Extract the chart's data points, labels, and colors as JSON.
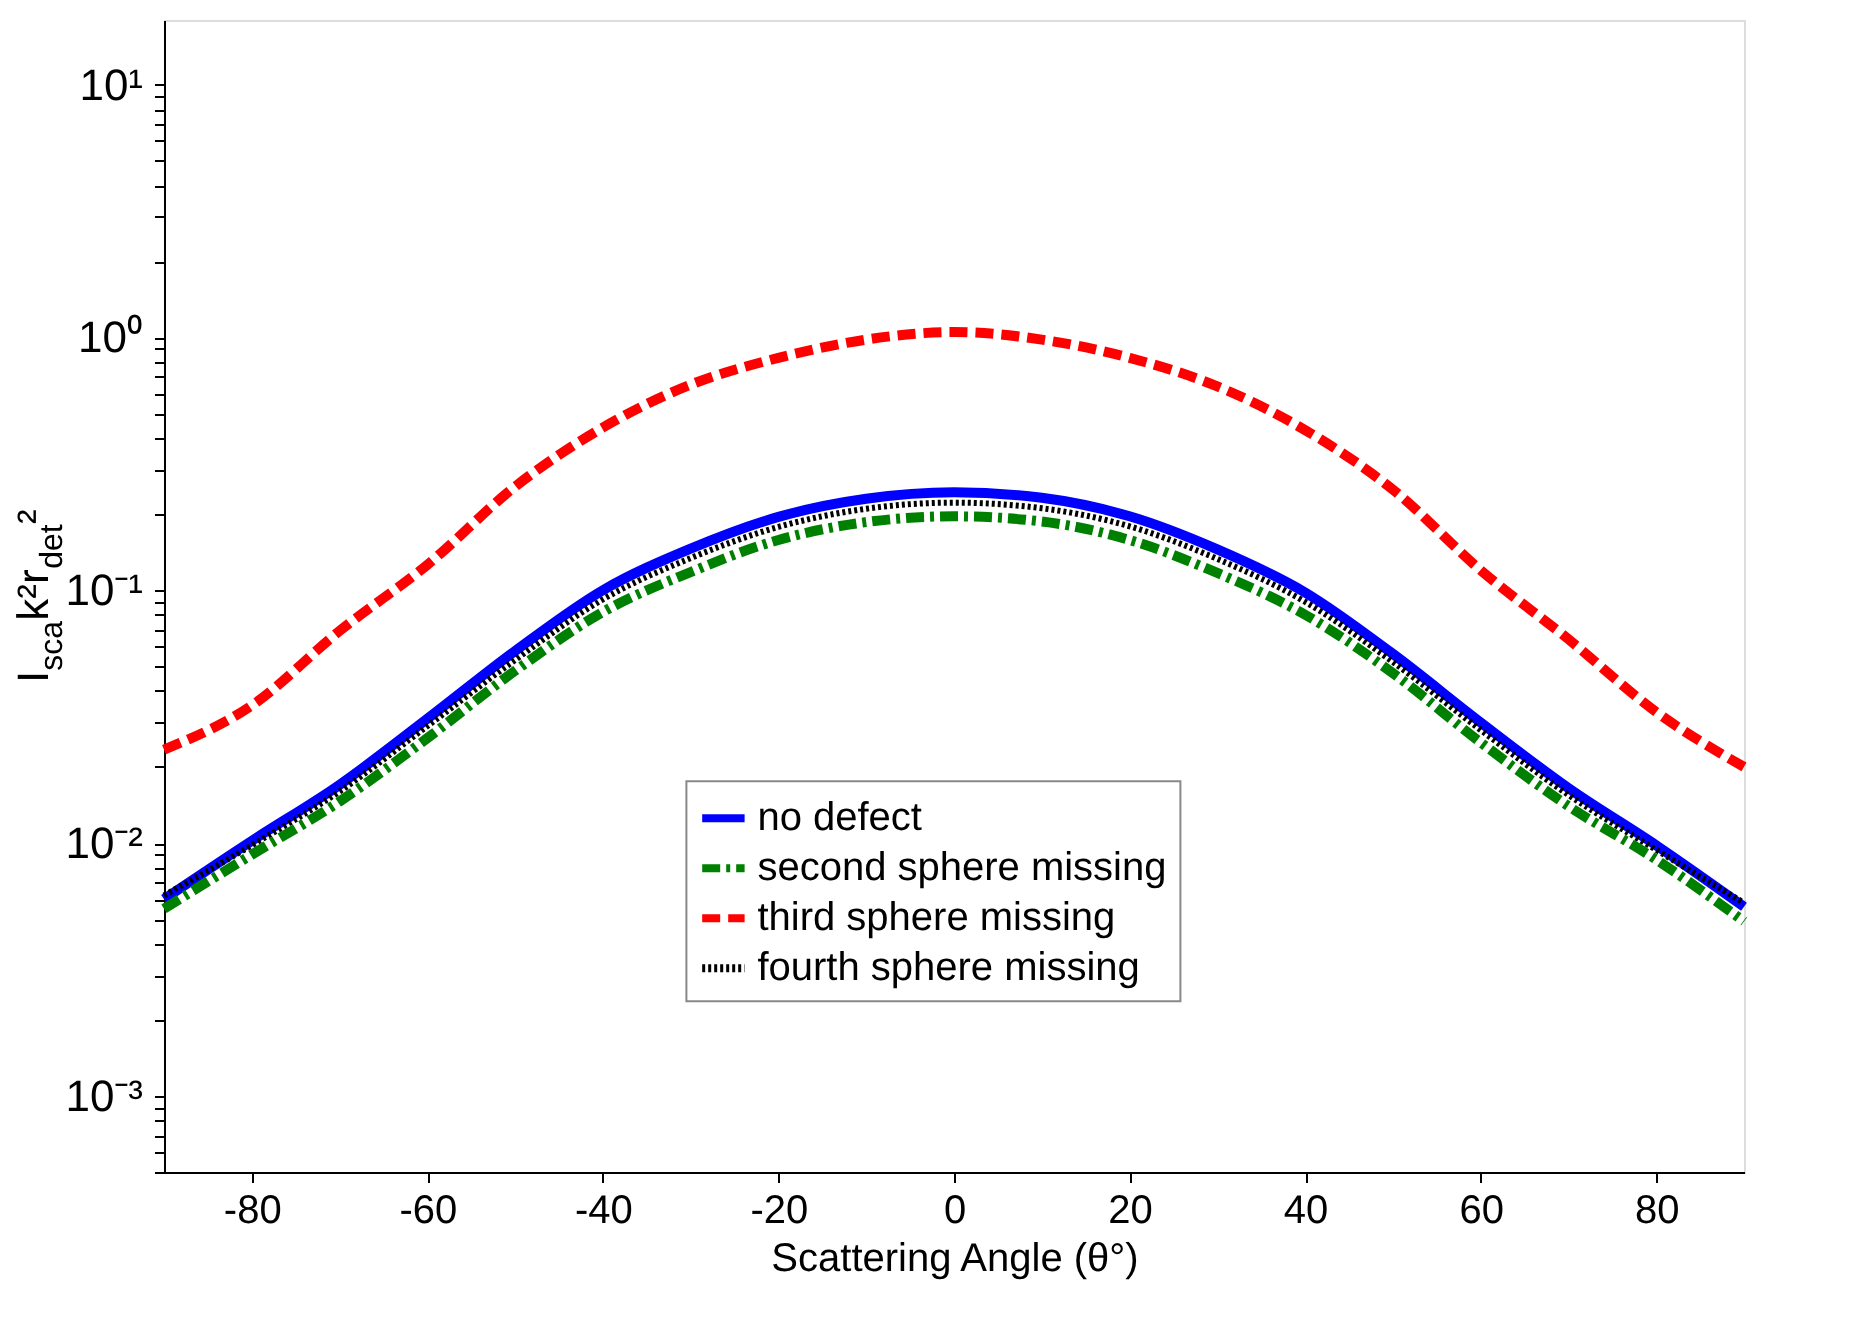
{
  "chart_data": {
    "type": "line",
    "xlabel": "Scattering Angle (θ°)",
    "ylabel": "I$_{sca}$k²r$_{det}$²",
    "x": [
      -90,
      -80,
      -70,
      -60,
      -50,
      -40,
      -30,
      -20,
      -10,
      0,
      10,
      20,
      30,
      40,
      50,
      60,
      70,
      80,
      90
    ],
    "series": [
      {
        "name": "no defect",
        "color": "#0000ff",
        "line_style": "solid",
        "values": [
          0.006,
          0.0102,
          0.017,
          0.031,
          0.0575,
          0.1,
          0.146,
          0.195,
          0.23,
          0.244,
          0.232,
          0.196,
          0.145,
          0.098,
          0.056,
          0.03,
          0.0165,
          0.0098,
          0.0056
        ]
      },
      {
        "name": "second sphere missing",
        "color": "#008000",
        "line_style": "dashdot",
        "values": [
          0.0055,
          0.009,
          0.0146,
          0.026,
          0.048,
          0.082,
          0.118,
          0.158,
          0.186,
          0.196,
          0.187,
          0.158,
          0.117,
          0.08,
          0.047,
          0.025,
          0.014,
          0.0086,
          0.0049
        ]
      },
      {
        "name": "third sphere missing",
        "color": "#ff0000",
        "line_style": "dashed",
        "values": [
          0.0234,
          0.035,
          0.069,
          0.126,
          0.257,
          0.44,
          0.65,
          0.83,
          0.98,
          1.05,
          0.98,
          0.83,
          0.64,
          0.43,
          0.25,
          0.12,
          0.064,
          0.033,
          0.02
        ]
      },
      {
        "name": "fourth sphere missing",
        "color": "#000000",
        "line_style": "dotted",
        "values": [
          0.0062,
          0.0098,
          0.016,
          0.029,
          0.053,
          0.092,
          0.134,
          0.178,
          0.21,
          0.222,
          0.211,
          0.179,
          0.133,
          0.09,
          0.052,
          0.028,
          0.0155,
          0.0094,
          0.0058
        ]
      }
    ],
    "log": "y",
    "xlim": [
      -90,
      90
    ],
    "xticks": [
      -80,
      -60,
      -40,
      -20,
      0,
      20,
      40,
      60,
      80
    ],
    "ylim": [
      0.0005,
      18
    ],
    "yticks": [
      {
        "value": 0.0005,
        "label": null
      },
      {
        "value": 0.0006,
        "label": null
      },
      {
        "value": 0.0007,
        "label": null
      },
      {
        "value": 0.0008,
        "label": null
      },
      {
        "value": 0.0009,
        "label": null
      },
      {
        "value": 0.001,
        "label": "10⁻³"
      },
      {
        "value": 0.002,
        "label": null
      },
      {
        "value": 0.003,
        "label": null
      },
      {
        "value": 0.004,
        "label": null
      },
      {
        "value": 0.005,
        "label": null
      },
      {
        "value": 0.006,
        "label": null
      },
      {
        "value": 0.007,
        "label": null
      },
      {
        "value": 0.008,
        "label": null
      },
      {
        "value": 0.009,
        "label": null
      },
      {
        "value": 0.01,
        "label": "10⁻²"
      },
      {
        "value": 0.02,
        "label": null
      },
      {
        "value": 0.03,
        "label": null
      },
      {
        "value": 0.04,
        "label": null
      },
      {
        "value": 0.05,
        "label": null
      },
      {
        "value": 0.06,
        "label": null
      },
      {
        "value": 0.07,
        "label": null
      },
      {
        "value": 0.08,
        "label": null
      },
      {
        "value": 0.09,
        "label": null
      },
      {
        "value": 0.1,
        "label": "10⁻¹"
      },
      {
        "value": 0.2,
        "label": null
      },
      {
        "value": 0.3,
        "label": null
      },
      {
        "value": 0.4,
        "label": null
      },
      {
        "value": 0.5,
        "label": null
      },
      {
        "value": 0.6,
        "label": null
      },
      {
        "value": 0.7,
        "label": null
      },
      {
        "value": 0.8,
        "label": null
      },
      {
        "value": 0.9,
        "label": null
      },
      {
        "value": 1,
        "label": "10⁰"
      },
      {
        "value": 2,
        "label": null
      },
      {
        "value": 3,
        "label": null
      },
      {
        "value": 4,
        "label": null
      },
      {
        "value": 5,
        "label": null
      },
      {
        "value": 6,
        "label": null
      },
      {
        "value": 7,
        "label": null
      },
      {
        "value": 8,
        "label": null
      },
      {
        "value": 9,
        "label": null
      },
      {
        "value": 10,
        "label": "10¹"
      }
    ],
    "grid": false,
    "legend": "bottom",
    "marker": "none"
  }
}
